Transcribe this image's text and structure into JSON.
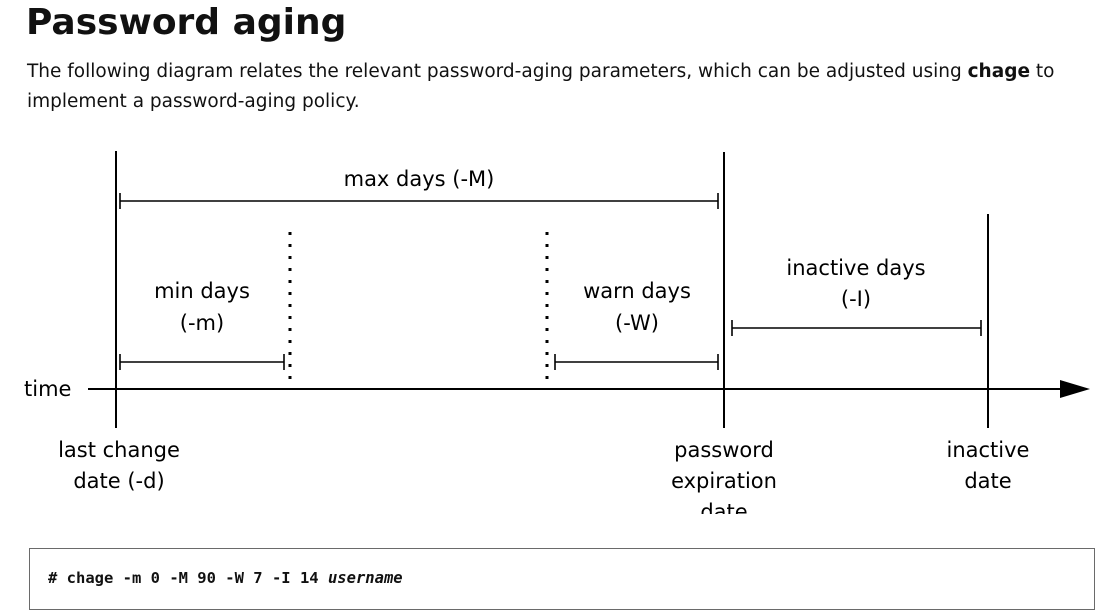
{
  "header": {
    "title": "Password aging"
  },
  "intro": {
    "text_before": "The following diagram relates the relevant password-aging parameters, which can be adjusted using ",
    "command": "chage",
    "text_after": " to implement a password-aging policy."
  },
  "diagram": {
    "time_label": "time",
    "max_days_label": "max days (-M)",
    "min_days_line1": "min days",
    "min_days_line2": "(-m)",
    "warn_days_line1": "warn days",
    "warn_days_line2": "(-W)",
    "inactive_days_line1": "inactive days",
    "inactive_days_line2": "(-I)",
    "last_change_line1": "last change",
    "last_change_line2": "date (-d)",
    "expiration_line1": "password",
    "expiration_line2": "expiration",
    "expiration_line3": "date",
    "inactive_date_line1": "inactive",
    "inactive_date_line2": "date"
  },
  "code_example": {
    "command": "# chage -m 0 -M 90 -W 7 -I 14 ",
    "argument": "username"
  }
}
